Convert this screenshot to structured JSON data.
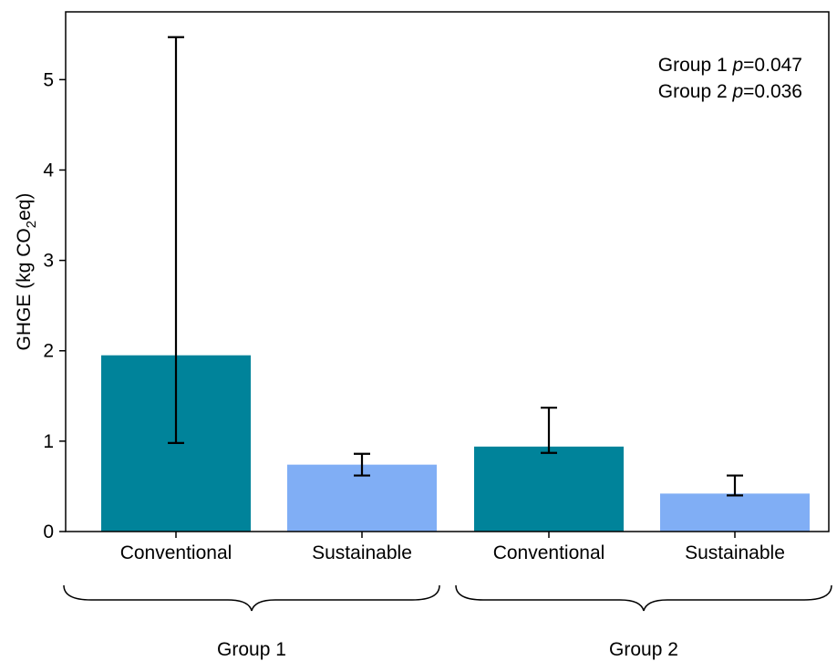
{
  "chart_data": {
    "type": "bar",
    "categories": [
      "Conventional",
      "Sustainable",
      "Conventional",
      "Sustainable"
    ],
    "groups": [
      {
        "label": "Group 1",
        "category_indices": [
          0,
          1
        ]
      },
      {
        "label": "Group 2",
        "category_indices": [
          2,
          3
        ]
      }
    ],
    "values": [
      1.95,
      0.74,
      0.94,
      0.42
    ],
    "error_low": [
      0.98,
      0.62,
      0.87,
      0.4
    ],
    "error_high": [
      5.47,
      0.86,
      1.37,
      0.62
    ],
    "bar_colors": [
      "#00839a",
      "#80aef5",
      "#00839a",
      "#80aef5"
    ],
    "ylabel_prefix": "GHGE (kg CO",
    "ylabel_sub": "2",
    "ylabel_suffix": "eq)",
    "ylim": [
      0,
      5.75
    ],
    "yticks": [
      "0",
      "1",
      "2",
      "3",
      "4",
      "5"
    ],
    "annotations": [
      {
        "prefix": "Group 1 ",
        "italic": "p",
        "suffix": "=0.047"
      },
      {
        "prefix": "Group 2 ",
        "italic": "p",
        "suffix": "=0.036"
      }
    ],
    "grid": false
  }
}
